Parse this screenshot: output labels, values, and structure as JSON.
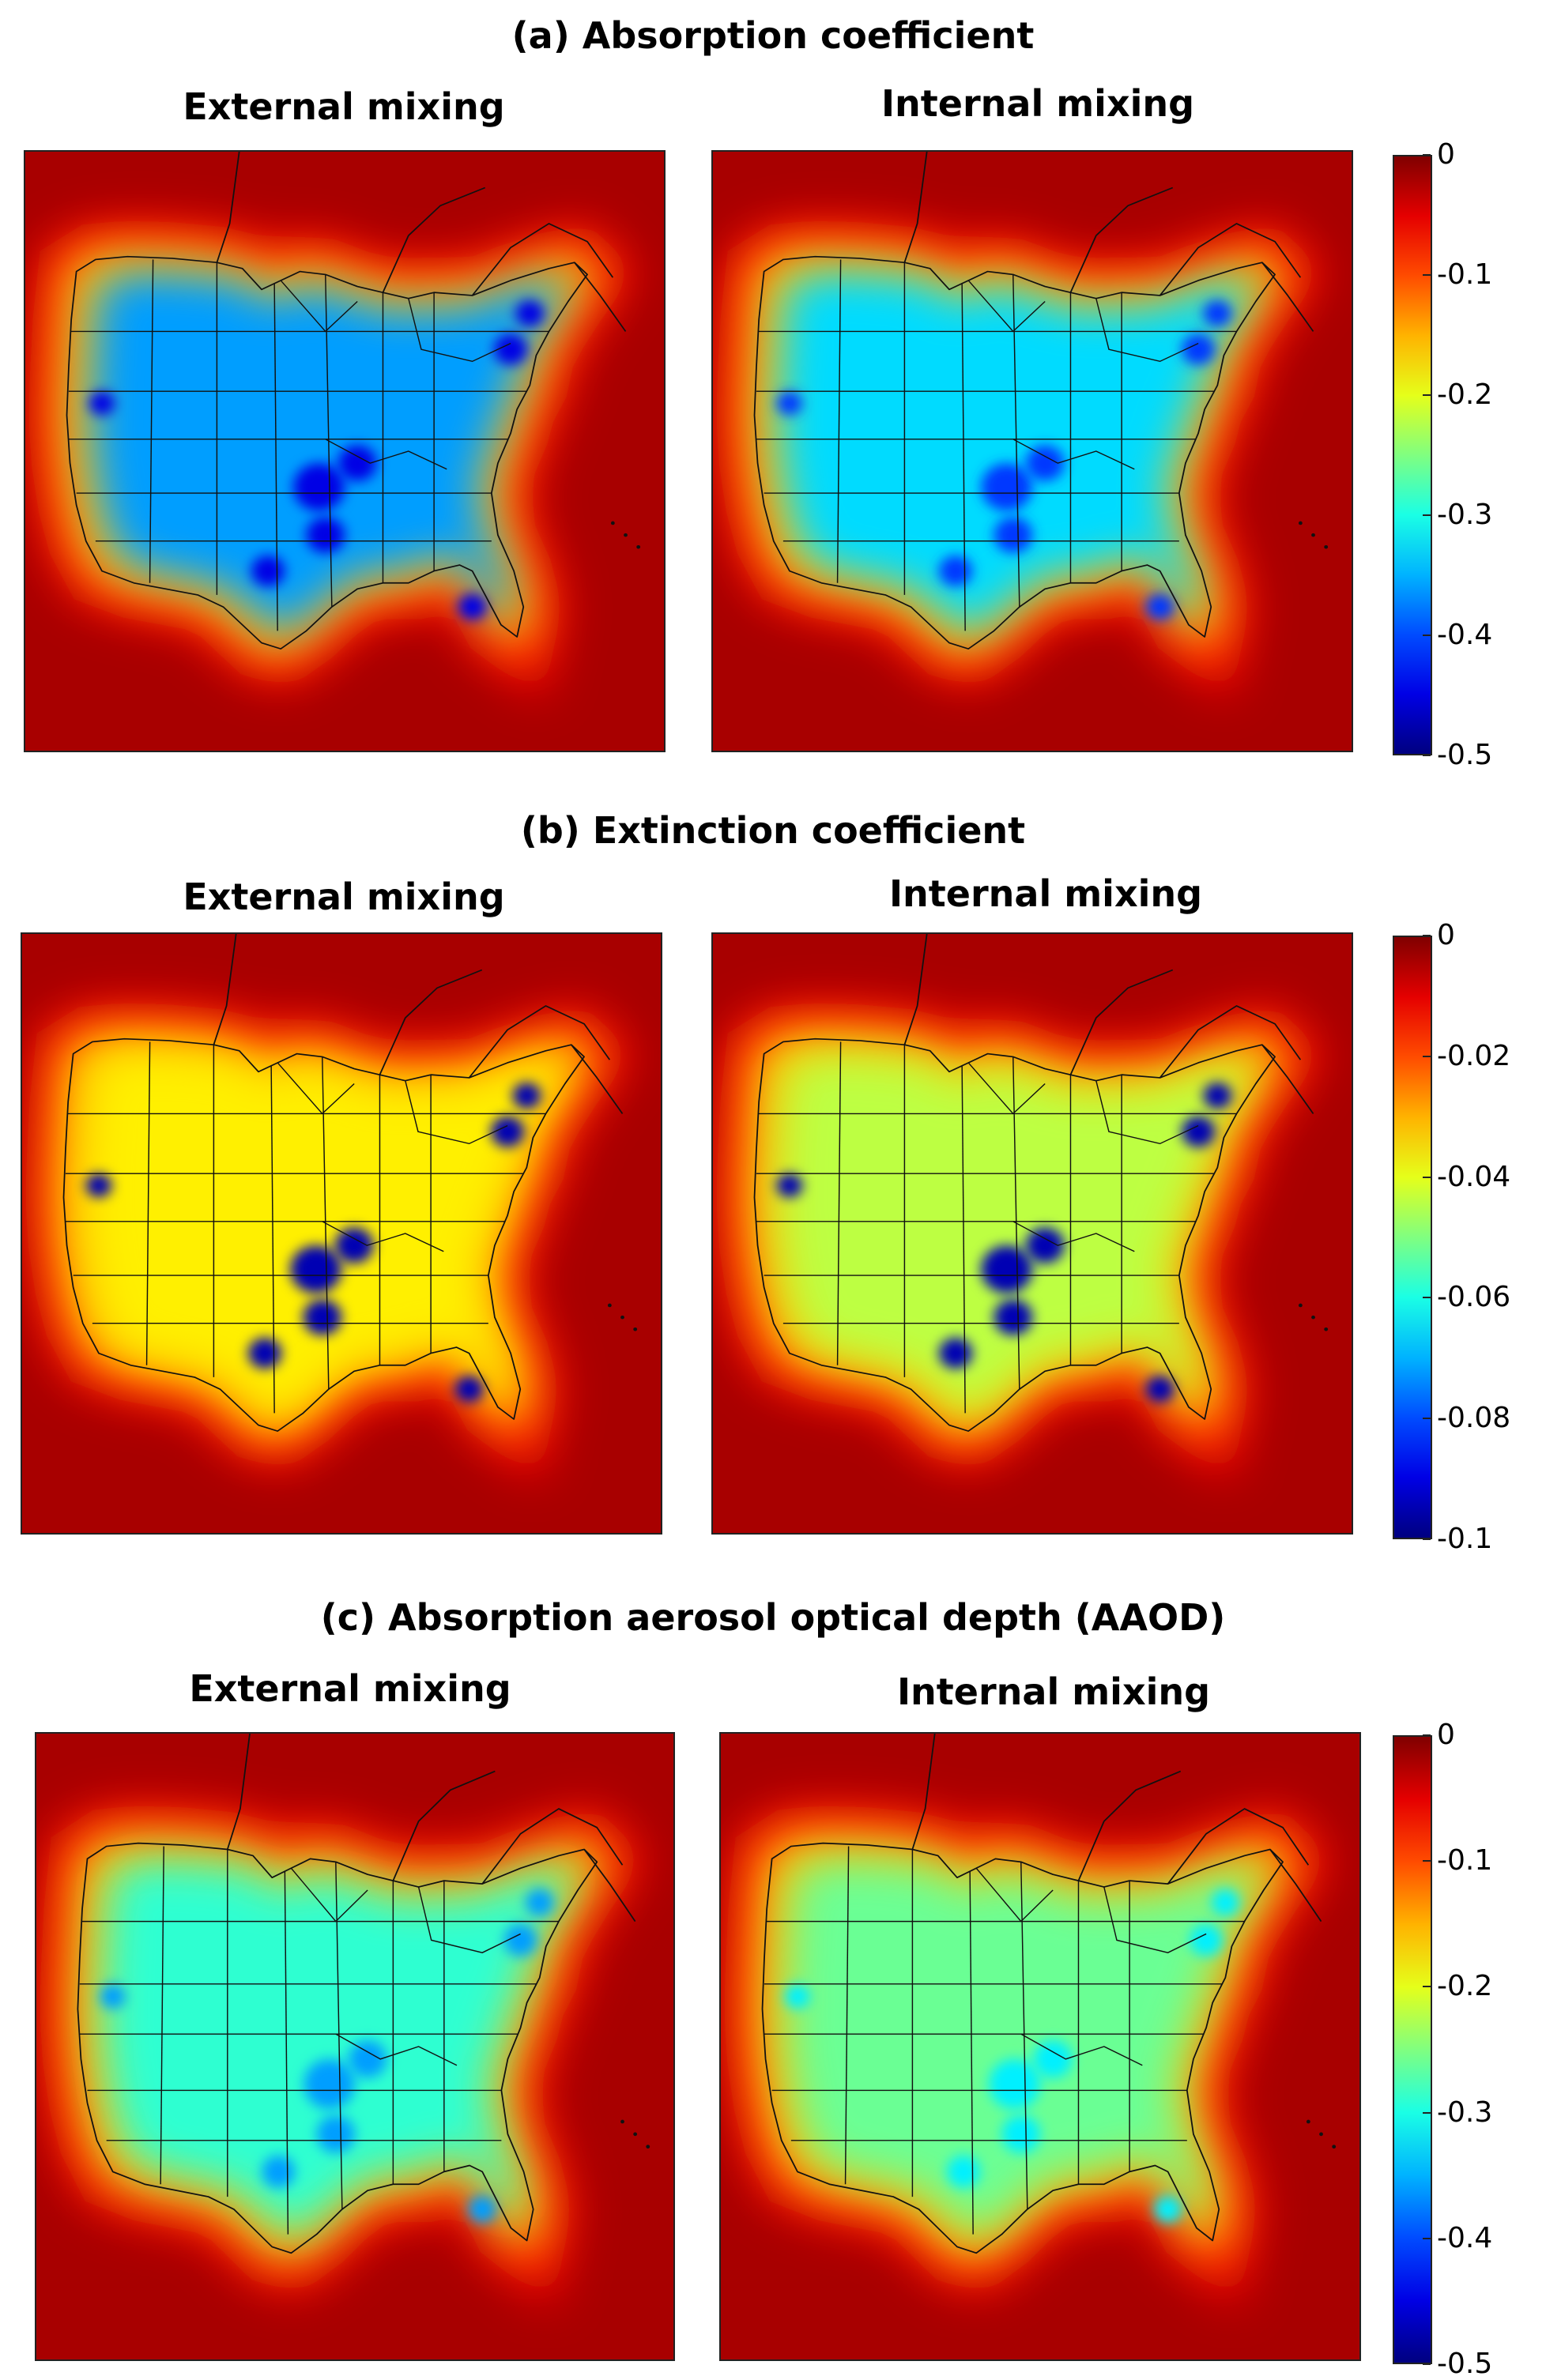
{
  "figure": {
    "sections": [
      {
        "id": "a",
        "title": "(a) Absorption coefficient",
        "panels": [
          {
            "title": "External mixing",
            "field": {
              "interior_level": 0.72,
              "hotspot_level": 0.9
            }
          },
          {
            "title": "Internal mixing",
            "field": {
              "interior_level": 0.66,
              "hotspot_level": 0.82
            }
          }
        ],
        "colorbar": {
          "min": -0.5,
          "max": 0,
          "ticks": [
            "0",
            "-0.1",
            "-0.2",
            "-0.3",
            "-0.4",
            "-0.5"
          ]
        }
      },
      {
        "id": "b",
        "title": "(b) Extinction coefficient",
        "panels": [
          {
            "title": "External mixing",
            "field": {
              "interior_level": 0.36,
              "hotspot_level": 0.95
            }
          },
          {
            "title": "Internal mixing",
            "field": {
              "interior_level": 0.44,
              "hotspot_level": 0.95
            }
          }
        ],
        "colorbar": {
          "min": -0.1,
          "max": 0,
          "ticks": [
            "0",
            "-0.02",
            "-0.04",
            "-0.06",
            "-0.08",
            "-0.1"
          ]
        }
      },
      {
        "id": "c",
        "title": "(c) Absorption aerosol optical depth (AAOD)",
        "panels": [
          {
            "title": "External mixing",
            "field": {
              "interior_level": 0.58,
              "hotspot_level": 0.72
            }
          },
          {
            "title": "Internal mixing",
            "field": {
              "interior_level": 0.52,
              "hotspot_level": 0.64
            }
          }
        ],
        "colorbar": {
          "min": -0.5,
          "max": 0,
          "ticks": [
            "0",
            "-0.1",
            "-0.2",
            "-0.3",
            "-0.4",
            "-0.5"
          ]
        }
      }
    ],
    "colormap": "jet"
  }
}
